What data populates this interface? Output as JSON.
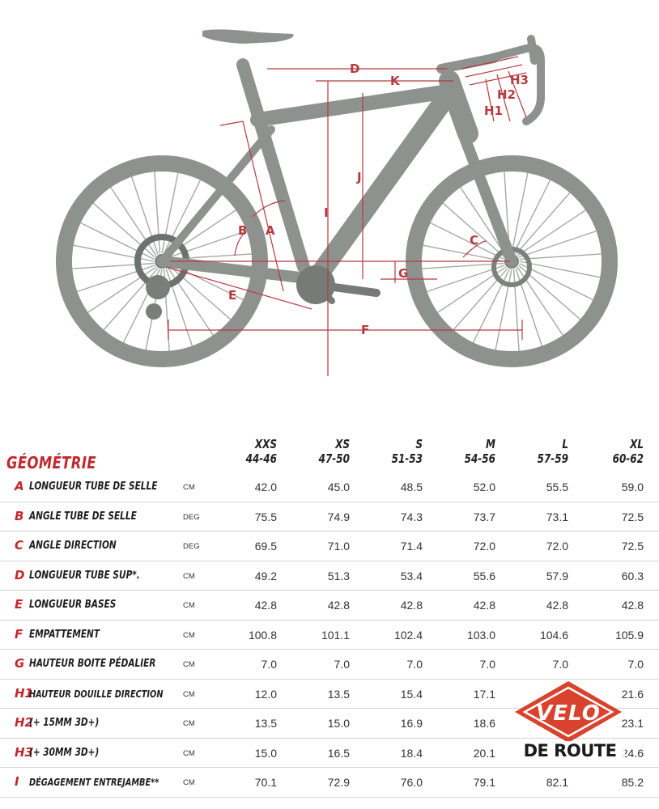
{
  "figure": {
    "labels": [
      "A",
      "B",
      "C",
      "D",
      "E",
      "F",
      "G",
      "H1",
      "H2",
      "H3",
      "I",
      "J",
      "K"
    ],
    "frame_color": "#8e928f",
    "dim_color": "#b53a3f"
  },
  "table": {
    "title": "GÉOMÉTRIE",
    "sizes": [
      {
        "code": "XXS",
        "range": "44-46"
      },
      {
        "code": "XS",
        "range": "47-50"
      },
      {
        "code": "S",
        "range": "51-53"
      },
      {
        "code": "M",
        "range": "54-56"
      },
      {
        "code": "L",
        "range": "57-59"
      },
      {
        "code": "XL",
        "range": "60-62"
      }
    ],
    "rows": [
      {
        "letter": "A",
        "label": "LONGUEUR TUBE DE SELLE",
        "unit": "CM",
        "values": [
          "42.0",
          "45.0",
          "48.5",
          "52.0",
          "55.5",
          "59.0"
        ]
      },
      {
        "letter": "B",
        "label": "ANGLE TUBE DE SELLE",
        "unit": "DEG",
        "values": [
          "75.5",
          "74.9",
          "74.3",
          "73.7",
          "73.1",
          "72.5"
        ]
      },
      {
        "letter": "C",
        "label": "ANGLE DIRECTION",
        "unit": "DEG",
        "values": [
          "69.5",
          "71.0",
          "71.4",
          "72.0",
          "72.0",
          "72.5"
        ]
      },
      {
        "letter": "D",
        "label": "LONGUEUR TUBE SUP*.",
        "unit": "CM",
        "values": [
          "49.2",
          "51.3",
          "53.4",
          "55.6",
          "57.9",
          "60.3"
        ]
      },
      {
        "letter": "E",
        "label": "LONGUEUR BASES",
        "unit": "CM",
        "values": [
          "42.8",
          "42.8",
          "42.8",
          "42.8",
          "42.8",
          "42.8"
        ]
      },
      {
        "letter": "F",
        "label": "EMPATTEMENT",
        "unit": "CM",
        "values": [
          "100.8",
          "101.1",
          "102.4",
          "103.0",
          "104.6",
          "105.9"
        ]
      },
      {
        "letter": "G",
        "label": "HAUTEUR BOITE PÉDALIER",
        "unit": "CM",
        "values": [
          "7.0",
          "7.0",
          "7.0",
          "7.0",
          "7.0",
          "7.0"
        ]
      },
      {
        "letter": "H1",
        "label": "HAUTEUR DOUILLE DIRECTION",
        "unit": "CM",
        "values": [
          "12.0",
          "13.5",
          "15.4",
          "17.1",
          "",
          "21.6"
        ]
      },
      {
        "letter": "H2",
        "label": "(+ 15MM 3D+)",
        "unit": "CM",
        "values": [
          "13.5",
          "15.0",
          "16.9",
          "18.6",
          "",
          "23.1"
        ]
      },
      {
        "letter": "H3",
        "label": "(+ 30MM 3D+)",
        "unit": "CM",
        "values": [
          "15.0",
          "16.5",
          "18.4",
          "20.1",
          "",
          "24.6"
        ]
      },
      {
        "letter": "I",
        "label": "DÉGAGEMENT ENTREJAMBE**",
        "unit": "CM",
        "values": [
          "70.1",
          "72.9",
          "76.0",
          "79.1",
          "82.1",
          "85.2"
        ]
      }
    ]
  },
  "watermark": {
    "brand": "VELO",
    "subtitle": "DE ROUTE",
    "color": "#d9422c"
  }
}
